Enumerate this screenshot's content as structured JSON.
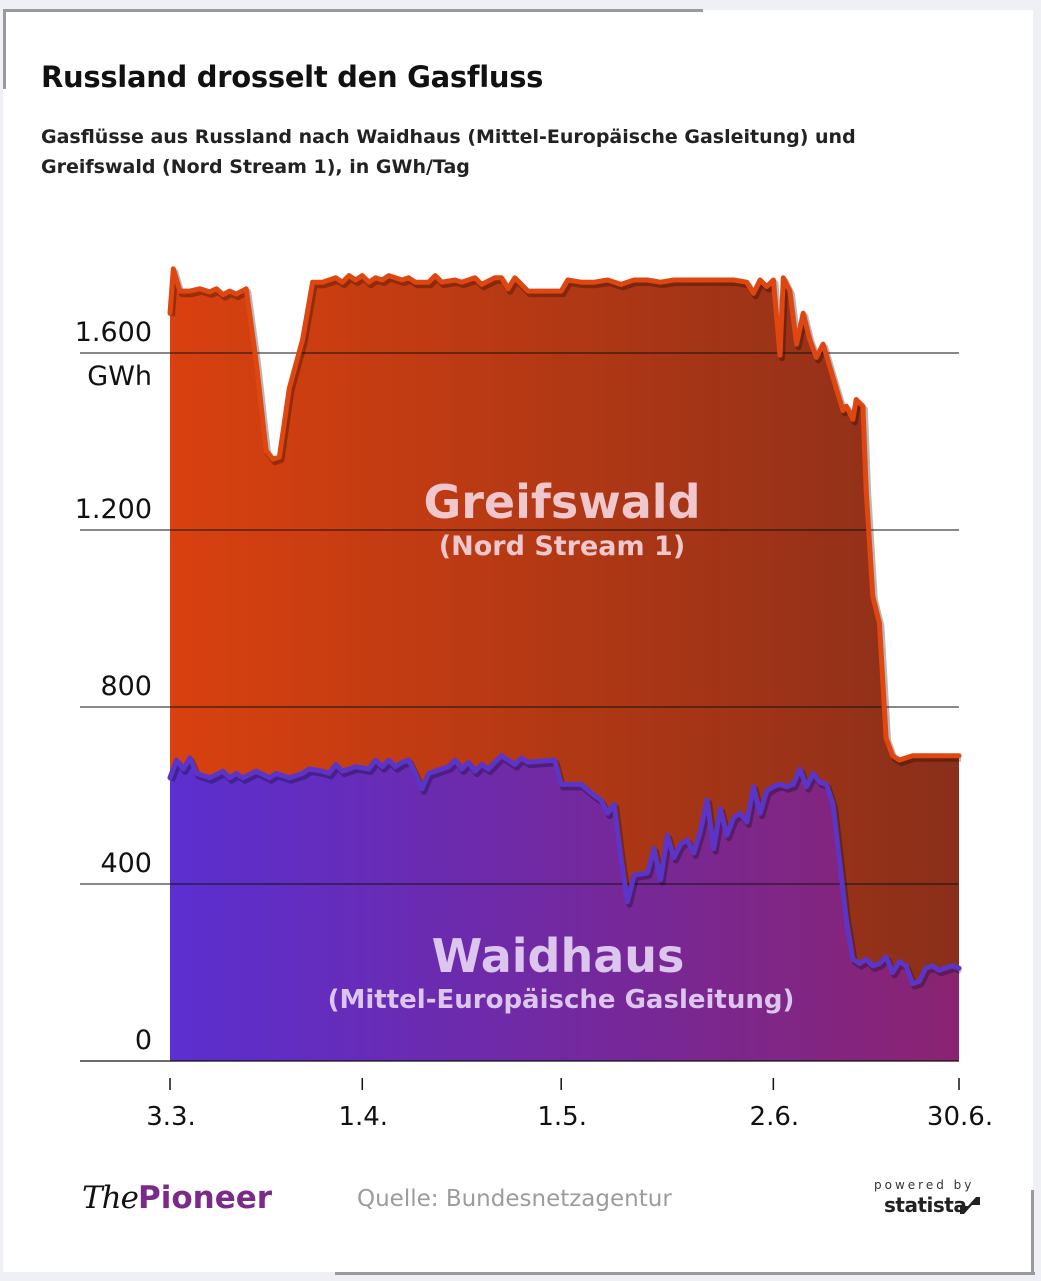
{
  "header": {
    "title": "Russland drosselt den Gasfluss",
    "subtitle": "Gasflüsse aus Russland nach Waidhaus (Mittel-Europäische Gasleitung) und Greifswald (Nord Stream 1), in GWh/Tag"
  },
  "footer": {
    "brand_the": "The",
    "brand_pioneer": "Pioneer",
    "source": "Quelle: Bundesnetzagentur",
    "powered_by": "powered by",
    "statista": "statista"
  },
  "colors": {
    "greifswald_line": "#e0460f",
    "greifswald_fill_start": "#d9410f",
    "greifswald_fill_end": "#8a2f1a",
    "waidhaus_line": "#5a35c8",
    "waidhaus_fill_start": "#5b2fd0",
    "waidhaus_fill_end": "#8a2370",
    "label_greifswald": "#f0c7cc",
    "label_waidhaus": "#dcc6ee"
  },
  "chart_data": {
    "type": "area",
    "title": "Russland drosselt den Gasfluss",
    "unit": "GWh/Tag",
    "ylabel": "GWh",
    "ylim": [
      0,
      1600
    ],
    "yticks": [
      {
        "value": 0,
        "label": "0"
      },
      {
        "value": 400,
        "label": "400"
      },
      {
        "value": 800,
        "label": "800"
      },
      {
        "value": 1200,
        "label": "1.200"
      },
      {
        "value": 1600,
        "label": "1.600",
        "unit": "GWh"
      }
    ],
    "xlim_days": [
      0,
      119
    ],
    "xticks": [
      {
        "day": 0,
        "label": "3.3."
      },
      {
        "day": 29,
        "label": "1.4."
      },
      {
        "day": 59,
        "label": "1.5."
      },
      {
        "day": 91,
        "label": "2.6."
      },
      {
        "day": 119,
        "label": "30.6."
      }
    ],
    "series": [
      {
        "name": "Greifswald",
        "subname": "(Nord Stream 1)",
        "stacked_total": true,
        "points": [
          [
            0,
            1690
          ],
          [
            0.5,
            1790
          ],
          [
            1.5,
            1740
          ],
          [
            3,
            1740
          ],
          [
            4.5,
            1745
          ],
          [
            6,
            1738
          ],
          [
            7,
            1745
          ],
          [
            8,
            1732
          ],
          [
            9,
            1740
          ],
          [
            10,
            1733
          ],
          [
            11.5,
            1745
          ],
          [
            13,
            1580
          ],
          [
            14.5,
            1380
          ],
          [
            15.5,
            1360
          ],
          [
            16.5,
            1365
          ],
          [
            18,
            1520
          ],
          [
            20,
            1630
          ],
          [
            21.5,
            1760
          ],
          [
            23,
            1760
          ],
          [
            25,
            1770
          ],
          [
            26,
            1760
          ],
          [
            27,
            1775
          ],
          [
            28,
            1765
          ],
          [
            29,
            1775
          ],
          [
            30,
            1760
          ],
          [
            31,
            1770
          ],
          [
            32,
            1765
          ],
          [
            33,
            1775
          ],
          [
            35,
            1765
          ],
          [
            36,
            1770
          ],
          [
            37,
            1760
          ],
          [
            39,
            1760
          ],
          [
            40,
            1775
          ],
          [
            41,
            1760
          ],
          [
            43,
            1765
          ],
          [
            44,
            1760
          ],
          [
            46,
            1770
          ],
          [
            47,
            1755
          ],
          [
            49,
            1770
          ],
          [
            50,
            1770
          ],
          [
            51,
            1745
          ],
          [
            52,
            1770
          ],
          [
            54,
            1740
          ],
          [
            57,
            1740
          ],
          [
            59,
            1740
          ],
          [
            60,
            1765
          ],
          [
            62,
            1760
          ],
          [
            64,
            1760
          ],
          [
            66,
            1765
          ],
          [
            68,
            1755
          ],
          [
            70,
            1765
          ],
          [
            72,
            1765
          ],
          [
            74,
            1760
          ],
          [
            76,
            1765
          ],
          [
            80,
            1765
          ],
          [
            85,
            1765
          ],
          [
            87,
            1760
          ],
          [
            88,
            1735
          ],
          [
            89,
            1765
          ],
          [
            90,
            1750
          ],
          [
            91,
            1765
          ],
          [
            92,
            1595
          ],
          [
            92.5,
            1770
          ],
          [
            93.5,
            1740
          ],
          [
            94.5,
            1620
          ],
          [
            95.5,
            1690
          ],
          [
            96.5,
            1630
          ],
          [
            97.5,
            1590
          ],
          [
            98.5,
            1620
          ],
          [
            99.5,
            1570
          ],
          [
            100.5,
            1520
          ],
          [
            101.5,
            1470
          ],
          [
            102,
            1480
          ],
          [
            103,
            1450
          ],
          [
            103.5,
            1495
          ],
          [
            104.5,
            1480
          ],
          [
            105,
            1290
          ],
          [
            106,
            1050
          ],
          [
            107,
            990
          ],
          [
            108,
            730
          ],
          [
            109,
            690
          ],
          [
            110,
            680
          ],
          [
            112,
            690
          ],
          [
            119,
            690
          ]
        ]
      },
      {
        "name": "Waidhaus",
        "subname": "(Mittel-Europäische Gasleitung)",
        "points": [
          [
            0,
            640
          ],
          [
            1,
            680
          ],
          [
            2,
            660
          ],
          [
            3,
            685
          ],
          [
            4,
            650
          ],
          [
            6,
            640
          ],
          [
            8,
            655
          ],
          [
            9,
            640
          ],
          [
            10,
            650
          ],
          [
            11,
            640
          ],
          [
            13,
            655
          ],
          [
            15,
            640
          ],
          [
            16,
            650
          ],
          [
            18,
            640
          ],
          [
            20,
            650
          ],
          [
            21,
            660
          ],
          [
            23,
            655
          ],
          [
            24,
            650
          ],
          [
            25,
            670
          ],
          [
            26,
            655
          ],
          [
            27,
            660
          ],
          [
            28,
            665
          ],
          [
            30,
            660
          ],
          [
            31,
            680
          ],
          [
            32,
            665
          ],
          [
            33,
            680
          ],
          [
            34,
            665
          ],
          [
            35,
            675
          ],
          [
            36,
            680
          ],
          [
            37,
            650
          ],
          [
            38,
            615
          ],
          [
            39,
            650
          ],
          [
            40,
            655
          ],
          [
            42,
            665
          ],
          [
            43,
            680
          ],
          [
            44,
            660
          ],
          [
            45,
            675
          ],
          [
            46,
            655
          ],
          [
            47,
            670
          ],
          [
            48,
            660
          ],
          [
            49,
            675
          ],
          [
            50,
            690
          ],
          [
            51,
            680
          ],
          [
            52,
            670
          ],
          [
            53,
            685
          ],
          [
            54,
            675
          ],
          [
            58,
            680
          ],
          [
            59,
            625
          ],
          [
            62,
            625
          ],
          [
            64,
            600
          ],
          [
            65,
            590
          ],
          [
            66,
            560
          ],
          [
            67,
            580
          ],
          [
            68,
            460
          ],
          [
            69,
            360
          ],
          [
            70,
            420
          ],
          [
            72,
            425
          ],
          [
            73,
            480
          ],
          [
            74,
            410
          ],
          [
            75,
            510
          ],
          [
            76,
            460
          ],
          [
            77,
            490
          ],
          [
            78,
            500
          ],
          [
            79,
            470
          ],
          [
            80,
            520
          ],
          [
            81,
            590
          ],
          [
            82,
            480
          ],
          [
            83,
            570
          ],
          [
            84,
            510
          ],
          [
            85,
            550
          ],
          [
            86,
            560
          ],
          [
            87,
            540
          ],
          [
            88,
            620
          ],
          [
            89,
            560
          ],
          [
            90,
            610
          ],
          [
            91,
            620
          ],
          [
            92,
            625
          ],
          [
            93,
            620
          ],
          [
            94,
            625
          ],
          [
            95,
            660
          ],
          [
            96,
            620
          ],
          [
            97,
            650
          ],
          [
            98,
            630
          ],
          [
            99,
            625
          ],
          [
            100,
            580
          ],
          [
            101,
            450
          ],
          [
            102,
            320
          ],
          [
            103,
            230
          ],
          [
            104,
            220
          ],
          [
            105,
            230
          ],
          [
            106,
            215
          ],
          [
            107,
            220
          ],
          [
            108,
            235
          ],
          [
            109,
            200
          ],
          [
            110,
            225
          ],
          [
            111,
            215
          ],
          [
            112,
            175
          ],
          [
            113,
            180
          ],
          [
            114,
            210
          ],
          [
            115,
            215
          ],
          [
            116,
            205
          ],
          [
            117,
            210
          ],
          [
            118,
            215
          ],
          [
            119,
            210
          ]
        ]
      }
    ]
  }
}
